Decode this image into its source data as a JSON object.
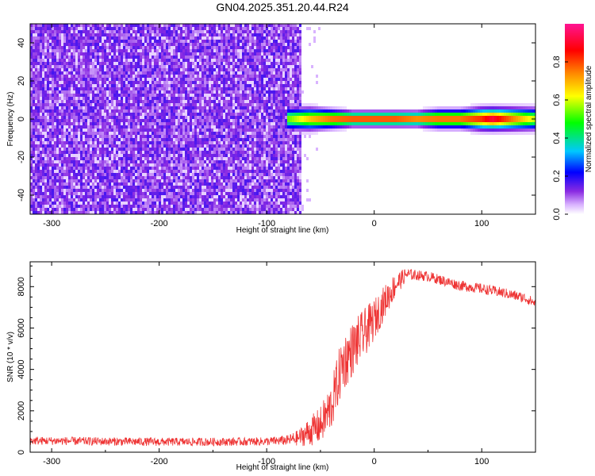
{
  "title": "GN04.2025.351.20.44.R24",
  "chart_data": [
    {
      "type": "heatmap",
      "xlabel": "Height of straight line (km)",
      "ylabel": "Frequency (Hz)",
      "xlim": [
        -320,
        150
      ],
      "ylim": [
        -50,
        50
      ],
      "xticks": [
        -300,
        -200,
        -100,
        0,
        100
      ],
      "yticks": [
        -40,
        -20,
        0,
        20,
        40
      ],
      "grid": false,
      "noise_region_x": [
        -320,
        -68
      ],
      "signal_band": {
        "center_hz": 0,
        "x": [
          -80,
          -60,
          -40,
          -20,
          0,
          20,
          40,
          60,
          80,
          100,
          110,
          120,
          150
        ],
        "peak_amplitude": [
          0.55,
          0.7,
          0.8,
          0.85,
          0.85,
          0.85,
          0.8,
          0.8,
          0.8,
          0.85,
          0.95,
          0.85,
          0.6
        ],
        "half_width_hz": [
          3,
          3,
          2.5,
          2,
          2,
          2,
          2,
          2.5,
          2.5,
          3,
          3,
          3,
          3
        ]
      },
      "colorbar": {
        "label": "Normalized spectral amplitude",
        "range": [
          0,
          1
        ],
        "ticks": [
          0.0,
          0.2,
          0.4,
          0.6,
          0.8
        ]
      }
    },
    {
      "type": "line",
      "xlabel": "Height of straight line (km)",
      "ylabel": "SNR (10 * v/v)",
      "xlim": [
        -320,
        150
      ],
      "ylim": [
        0,
        9200
      ],
      "xticks": [
        -300,
        -200,
        -100,
        0,
        100
      ],
      "yticks": [
        0,
        2000,
        4000,
        6000,
        8000
      ],
      "grid": false,
      "color": "#ee3333",
      "series": [
        {
          "x": [
            -320,
            -300,
            -250,
            -200,
            -150,
            -100,
            -80,
            -70,
            -60,
            -50,
            -40,
            -30,
            -20,
            -10,
            0,
            10,
            20,
            30,
            40,
            50,
            60,
            70,
            80,
            100,
            120,
            140,
            150
          ],
          "values": [
            550,
            550,
            520,
            500,
            500,
            520,
            580,
            700,
            1000,
            1300,
            2200,
            4200,
            5000,
            5700,
            6400,
            7300,
            8100,
            8600,
            8550,
            8500,
            8350,
            8200,
            8050,
            7900,
            7700,
            7450,
            7200
          ],
          "spread": [
            200,
            200,
            200,
            200,
            200,
            200,
            250,
            400,
            700,
            900,
            1200,
            1400,
            1300,
            1200,
            1000,
            800,
            600,
            300,
            250,
            250,
            250,
            250,
            250,
            250,
            250,
            250,
            250
          ]
        }
      ]
    }
  ]
}
